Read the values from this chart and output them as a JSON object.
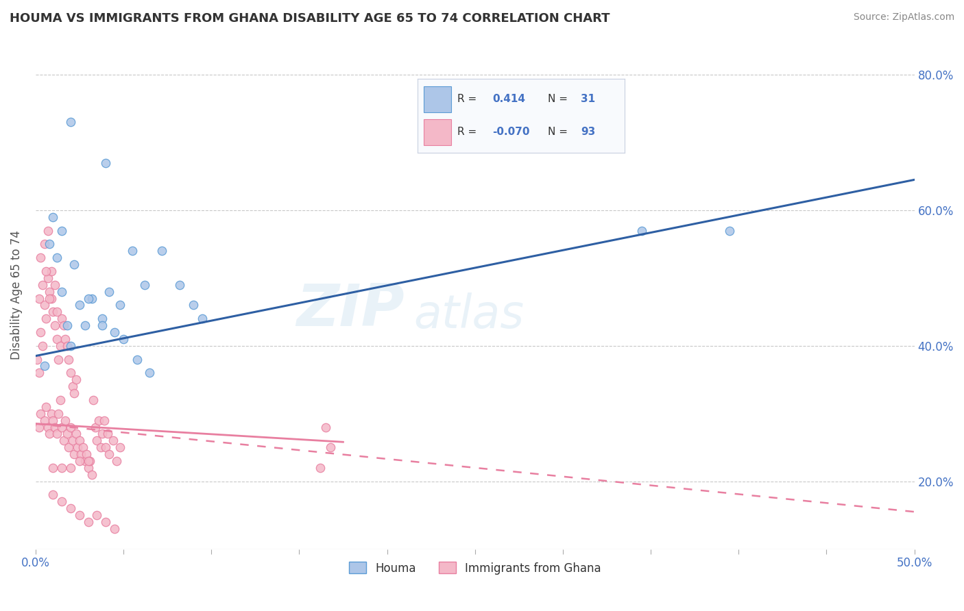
{
  "title": "HOUMA VS IMMIGRANTS FROM GHANA DISABILITY AGE 65 TO 74 CORRELATION CHART",
  "source_text": "Source: ZipAtlas.com",
  "ylabel": "Disability Age 65 to 74",
  "xlim": [
    0.0,
    0.5
  ],
  "ylim": [
    0.1,
    0.85
  ],
  "houma_color": "#adc6e8",
  "houma_edge_color": "#5b9bd5",
  "ghana_color": "#f4b8c8",
  "ghana_edge_color": "#e87fa0",
  "houma_line_color": "#2e5fa3",
  "ghana_solid_color": "#e87fa0",
  "ghana_dash_color": "#f4b8c8",
  "legend_box_color": "#f0f4fb",
  "legend_border_color": "#d0d8e8",
  "background_color": "#ffffff",
  "grid_color": "#c8c8c8",
  "watermark": "ZIPatlas",
  "houma_trend": [
    0.0,
    0.385,
    0.5,
    0.645
  ],
  "ghana_solid_trend": [
    0.0,
    0.285,
    0.175,
    0.258
  ],
  "ghana_dash_trend": [
    0.0,
    0.285,
    0.5,
    0.155
  ],
  "houma_x": [
    0.005,
    0.008,
    0.012,
    0.015,
    0.018,
    0.02,
    0.025,
    0.028,
    0.032,
    0.038,
    0.042,
    0.048,
    0.055,
    0.062,
    0.072,
    0.082,
    0.09,
    0.095,
    0.01,
    0.015,
    0.022,
    0.03,
    0.038,
    0.045,
    0.05,
    0.058,
    0.065,
    0.345,
    0.395,
    0.02,
    0.04
  ],
  "houma_y": [
    0.37,
    0.55,
    0.53,
    0.48,
    0.43,
    0.4,
    0.46,
    0.43,
    0.47,
    0.44,
    0.48,
    0.46,
    0.54,
    0.49,
    0.54,
    0.49,
    0.46,
    0.44,
    0.59,
    0.57,
    0.52,
    0.47,
    0.43,
    0.42,
    0.41,
    0.38,
    0.36,
    0.57,
    0.57,
    0.73,
    0.67
  ],
  "ghana_x": [
    0.002,
    0.003,
    0.005,
    0.006,
    0.007,
    0.008,
    0.009,
    0.01,
    0.011,
    0.012,
    0.013,
    0.014,
    0.015,
    0.016,
    0.017,
    0.018,
    0.019,
    0.02,
    0.021,
    0.022,
    0.023,
    0.024,
    0.025,
    0.026,
    0.027,
    0.028,
    0.029,
    0.03,
    0.031,
    0.032,
    0.033,
    0.034,
    0.035,
    0.036,
    0.037,
    0.038,
    0.039,
    0.04,
    0.041,
    0.042,
    0.044,
    0.046,
    0.048,
    0.001,
    0.002,
    0.003,
    0.004,
    0.005,
    0.006,
    0.007,
    0.008,
    0.009,
    0.01,
    0.011,
    0.012,
    0.013,
    0.014,
    0.015,
    0.016,
    0.017,
    0.018,
    0.019,
    0.02,
    0.021,
    0.022,
    0.023,
    0.003,
    0.005,
    0.007,
    0.009,
    0.011,
    0.165,
    0.168,
    0.162,
    0.01,
    0.015,
    0.02,
    0.025,
    0.03,
    0.01,
    0.015,
    0.02,
    0.025,
    0.03,
    0.035,
    0.04,
    0.045,
    0.002,
    0.004,
    0.006,
    0.008,
    0.012
  ],
  "ghana_y": [
    0.28,
    0.3,
    0.29,
    0.31,
    0.28,
    0.27,
    0.3,
    0.29,
    0.28,
    0.27,
    0.3,
    0.32,
    0.28,
    0.26,
    0.29,
    0.27,
    0.25,
    0.28,
    0.26,
    0.24,
    0.27,
    0.25,
    0.26,
    0.24,
    0.25,
    0.23,
    0.24,
    0.22,
    0.23,
    0.21,
    0.32,
    0.28,
    0.26,
    0.29,
    0.25,
    0.27,
    0.29,
    0.25,
    0.27,
    0.24,
    0.26,
    0.23,
    0.25,
    0.38,
    0.36,
    0.42,
    0.4,
    0.46,
    0.44,
    0.5,
    0.48,
    0.47,
    0.45,
    0.43,
    0.41,
    0.38,
    0.4,
    0.44,
    0.43,
    0.41,
    0.4,
    0.38,
    0.36,
    0.34,
    0.33,
    0.35,
    0.53,
    0.55,
    0.57,
    0.51,
    0.49,
    0.28,
    0.25,
    0.22,
    0.22,
    0.22,
    0.22,
    0.23,
    0.23,
    0.18,
    0.17,
    0.16,
    0.15,
    0.14,
    0.15,
    0.14,
    0.13,
    0.47,
    0.49,
    0.51,
    0.47,
    0.45
  ]
}
